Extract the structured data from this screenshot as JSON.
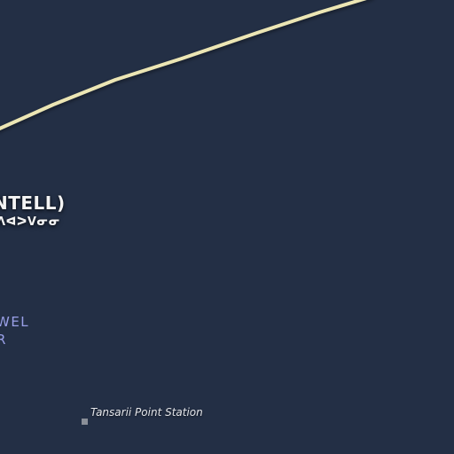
{
  "map": {
    "background_color": "#232f45",
    "road_color": "#ece6b4",
    "region_label": "NTELL)",
    "region_label_native": "ᐱᐊᐳᐯᓂᓂ",
    "water_label_line1": "WEL",
    "water_label_line2": "R",
    "poi": {
      "name": "Tansarii Point Station",
      "icon": "station-square-icon"
    }
  }
}
